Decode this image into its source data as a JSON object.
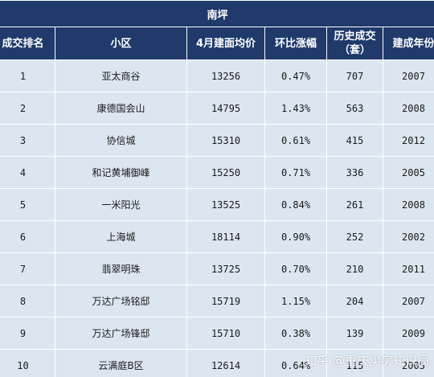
{
  "table": {
    "title": "南坪",
    "headers": [
      "成交排名",
      "小区",
      "4月建面均价",
      "环比涨幅",
      "历史成交\n（套）",
      "建成年份"
    ],
    "rows": [
      [
        "1",
        "亚太商谷",
        "13256",
        "0.47%",
        "707",
        "2007"
      ],
      [
        "2",
        "康德国会山",
        "14795",
        "1.43%",
        "563",
        "2008"
      ],
      [
        "3",
        "协信城",
        "15310",
        "0.61%",
        "415",
        "2012"
      ],
      [
        "4",
        "和记黄埔御峰",
        "15250",
        "0.71%",
        "336",
        "2005"
      ],
      [
        "5",
        "一米阳光",
        "13525",
        "0.84%",
        "261",
        "2008"
      ],
      [
        "6",
        "上海城",
        "18114",
        "0.90%",
        "252",
        "2002"
      ],
      [
        "7",
        "翡翠明珠",
        "13725",
        "0.70%",
        "210",
        "2011"
      ],
      [
        "8",
        "万达广场铭邸",
        "15719",
        "1.15%",
        "204",
        "2007"
      ],
      [
        "9",
        "万达广场锋邸",
        "15710",
        "0.38%",
        "139",
        "2009"
      ],
      [
        "10",
        "云满庭B区",
        "12614",
        "0.64%",
        "115",
        "2005"
      ]
    ]
  },
  "watermark": "知乎 @重庆买房知识局",
  "colors": {
    "header_bg": "#1f3a6b",
    "row_bg": "#dce6f1"
  }
}
